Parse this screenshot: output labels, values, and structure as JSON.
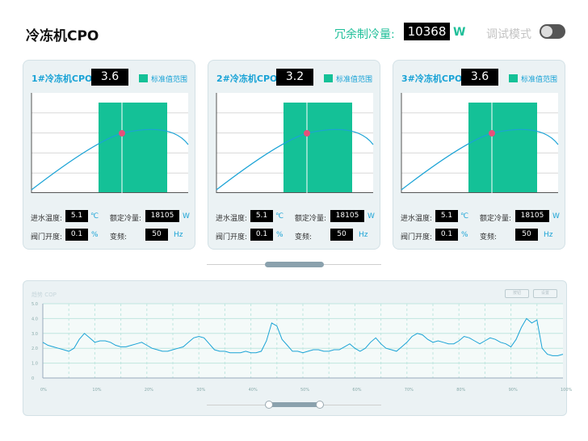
{
  "header": {
    "title": "冷冻机CPO",
    "redundant_label": "冗余制冷量:",
    "redundant_value": "10368",
    "redundant_unit": "W",
    "debug_label": "调试模式",
    "debug_on": false
  },
  "legend_label": "标准值范围",
  "colors": {
    "accent": "#1fbf99",
    "band": "#14c197",
    "line": "#1aa3d6",
    "marker": "#e8507a"
  },
  "labels": {
    "inlet_temp": "进水温度:",
    "rated_cooling": "额定冷量:",
    "valve_open": "阀门开度:",
    "frequency": "变频:"
  },
  "units": {
    "temp": "℃",
    "power": "W",
    "percent": "%",
    "freq": "Hz"
  },
  "chillers": [
    {
      "title": "1#冷冻机CPO",
      "cop": "3.6",
      "inlet_temp": "5.1",
      "rated_cooling": "18105",
      "valve_open": "0.1",
      "frequency": "50"
    },
    {
      "title": "2#冷冻机CPO",
      "cop": "3.2",
      "inlet_temp": "5.1",
      "rated_cooling": "18105",
      "valve_open": "0.1",
      "frequency": "50"
    },
    {
      "title": "3#冷冻机CPO",
      "cop": "3.6",
      "inlet_temp": "5.1",
      "rated_cooling": "18105",
      "valve_open": "0.1",
      "frequency": "50"
    }
  ],
  "trend_panel": {
    "title": "趋势 COP",
    "button_a": "按钮",
    "button_b": "设置",
    "y_ticks": [
      "0",
      "1.0",
      "2.0",
      "3.0",
      "4.0",
      "5.0"
    ],
    "x_ticks": [
      "0%",
      "10%",
      "20%",
      "30%",
      "40%",
      "50%",
      "60%",
      "70%",
      "80%",
      "90%",
      "100%"
    ]
  },
  "chart_data": {
    "type": "line",
    "y_range": [
      0,
      5.0
    ],
    "x_range": [
      0,
      100
    ],
    "x": [
      0,
      1,
      2,
      3,
      4,
      5,
      6,
      7,
      8,
      9,
      10,
      11,
      12,
      13,
      14,
      15,
      16,
      17,
      18,
      19,
      20,
      21,
      22,
      23,
      24,
      25,
      26,
      27,
      28,
      29,
      30,
      31,
      32,
      33,
      34,
      35,
      36,
      37,
      38,
      39,
      40,
      41,
      42,
      43,
      44,
      45,
      46,
      47,
      48,
      49,
      50,
      51,
      52,
      53,
      54,
      55,
      56,
      57,
      58,
      59,
      60,
      61,
      62,
      63,
      64,
      65,
      66,
      67,
      68,
      69,
      70,
      71,
      72,
      73,
      74,
      75,
      76,
      77,
      78,
      79,
      80,
      81,
      82,
      83,
      84,
      85,
      86,
      87,
      88,
      89,
      90,
      91,
      92,
      93,
      94,
      95,
      96,
      97,
      98,
      99,
      100
    ],
    "y": [
      2.4,
      2.2,
      2.1,
      2.0,
      1.9,
      1.8,
      2.0,
      2.6,
      3.0,
      2.7,
      2.4,
      2.5,
      2.5,
      2.4,
      2.2,
      2.1,
      2.1,
      2.2,
      2.3,
      2.4,
      2.2,
      2.0,
      1.9,
      1.8,
      1.8,
      1.9,
      2.0,
      2.1,
      2.4,
      2.7,
      2.8,
      2.7,
      2.3,
      1.9,
      1.8,
      1.8,
      1.7,
      1.7,
      1.7,
      1.8,
      1.7,
      1.7,
      1.8,
      2.5,
      3.7,
      3.5,
      2.6,
      2.2,
      1.8,
      1.8,
      1.7,
      1.8,
      1.9,
      1.9,
      1.8,
      1.8,
      1.9,
      1.9,
      2.1,
      2.3,
      2.0,
      1.8,
      2.0,
      2.4,
      2.7,
      2.3,
      2.0,
      1.9,
      1.8,
      2.1,
      2.4,
      2.8,
      3.0,
      2.9,
      2.6,
      2.4,
      2.5,
      2.4,
      2.3,
      2.3,
      2.5,
      2.8,
      2.7,
      2.5,
      2.3,
      2.5,
      2.7,
      2.6,
      2.4,
      2.3,
      2.1,
      2.6,
      3.4,
      4.0,
      3.7,
      3.9,
      2.0,
      1.6,
      1.5,
      1.5,
      1.6
    ]
  }
}
